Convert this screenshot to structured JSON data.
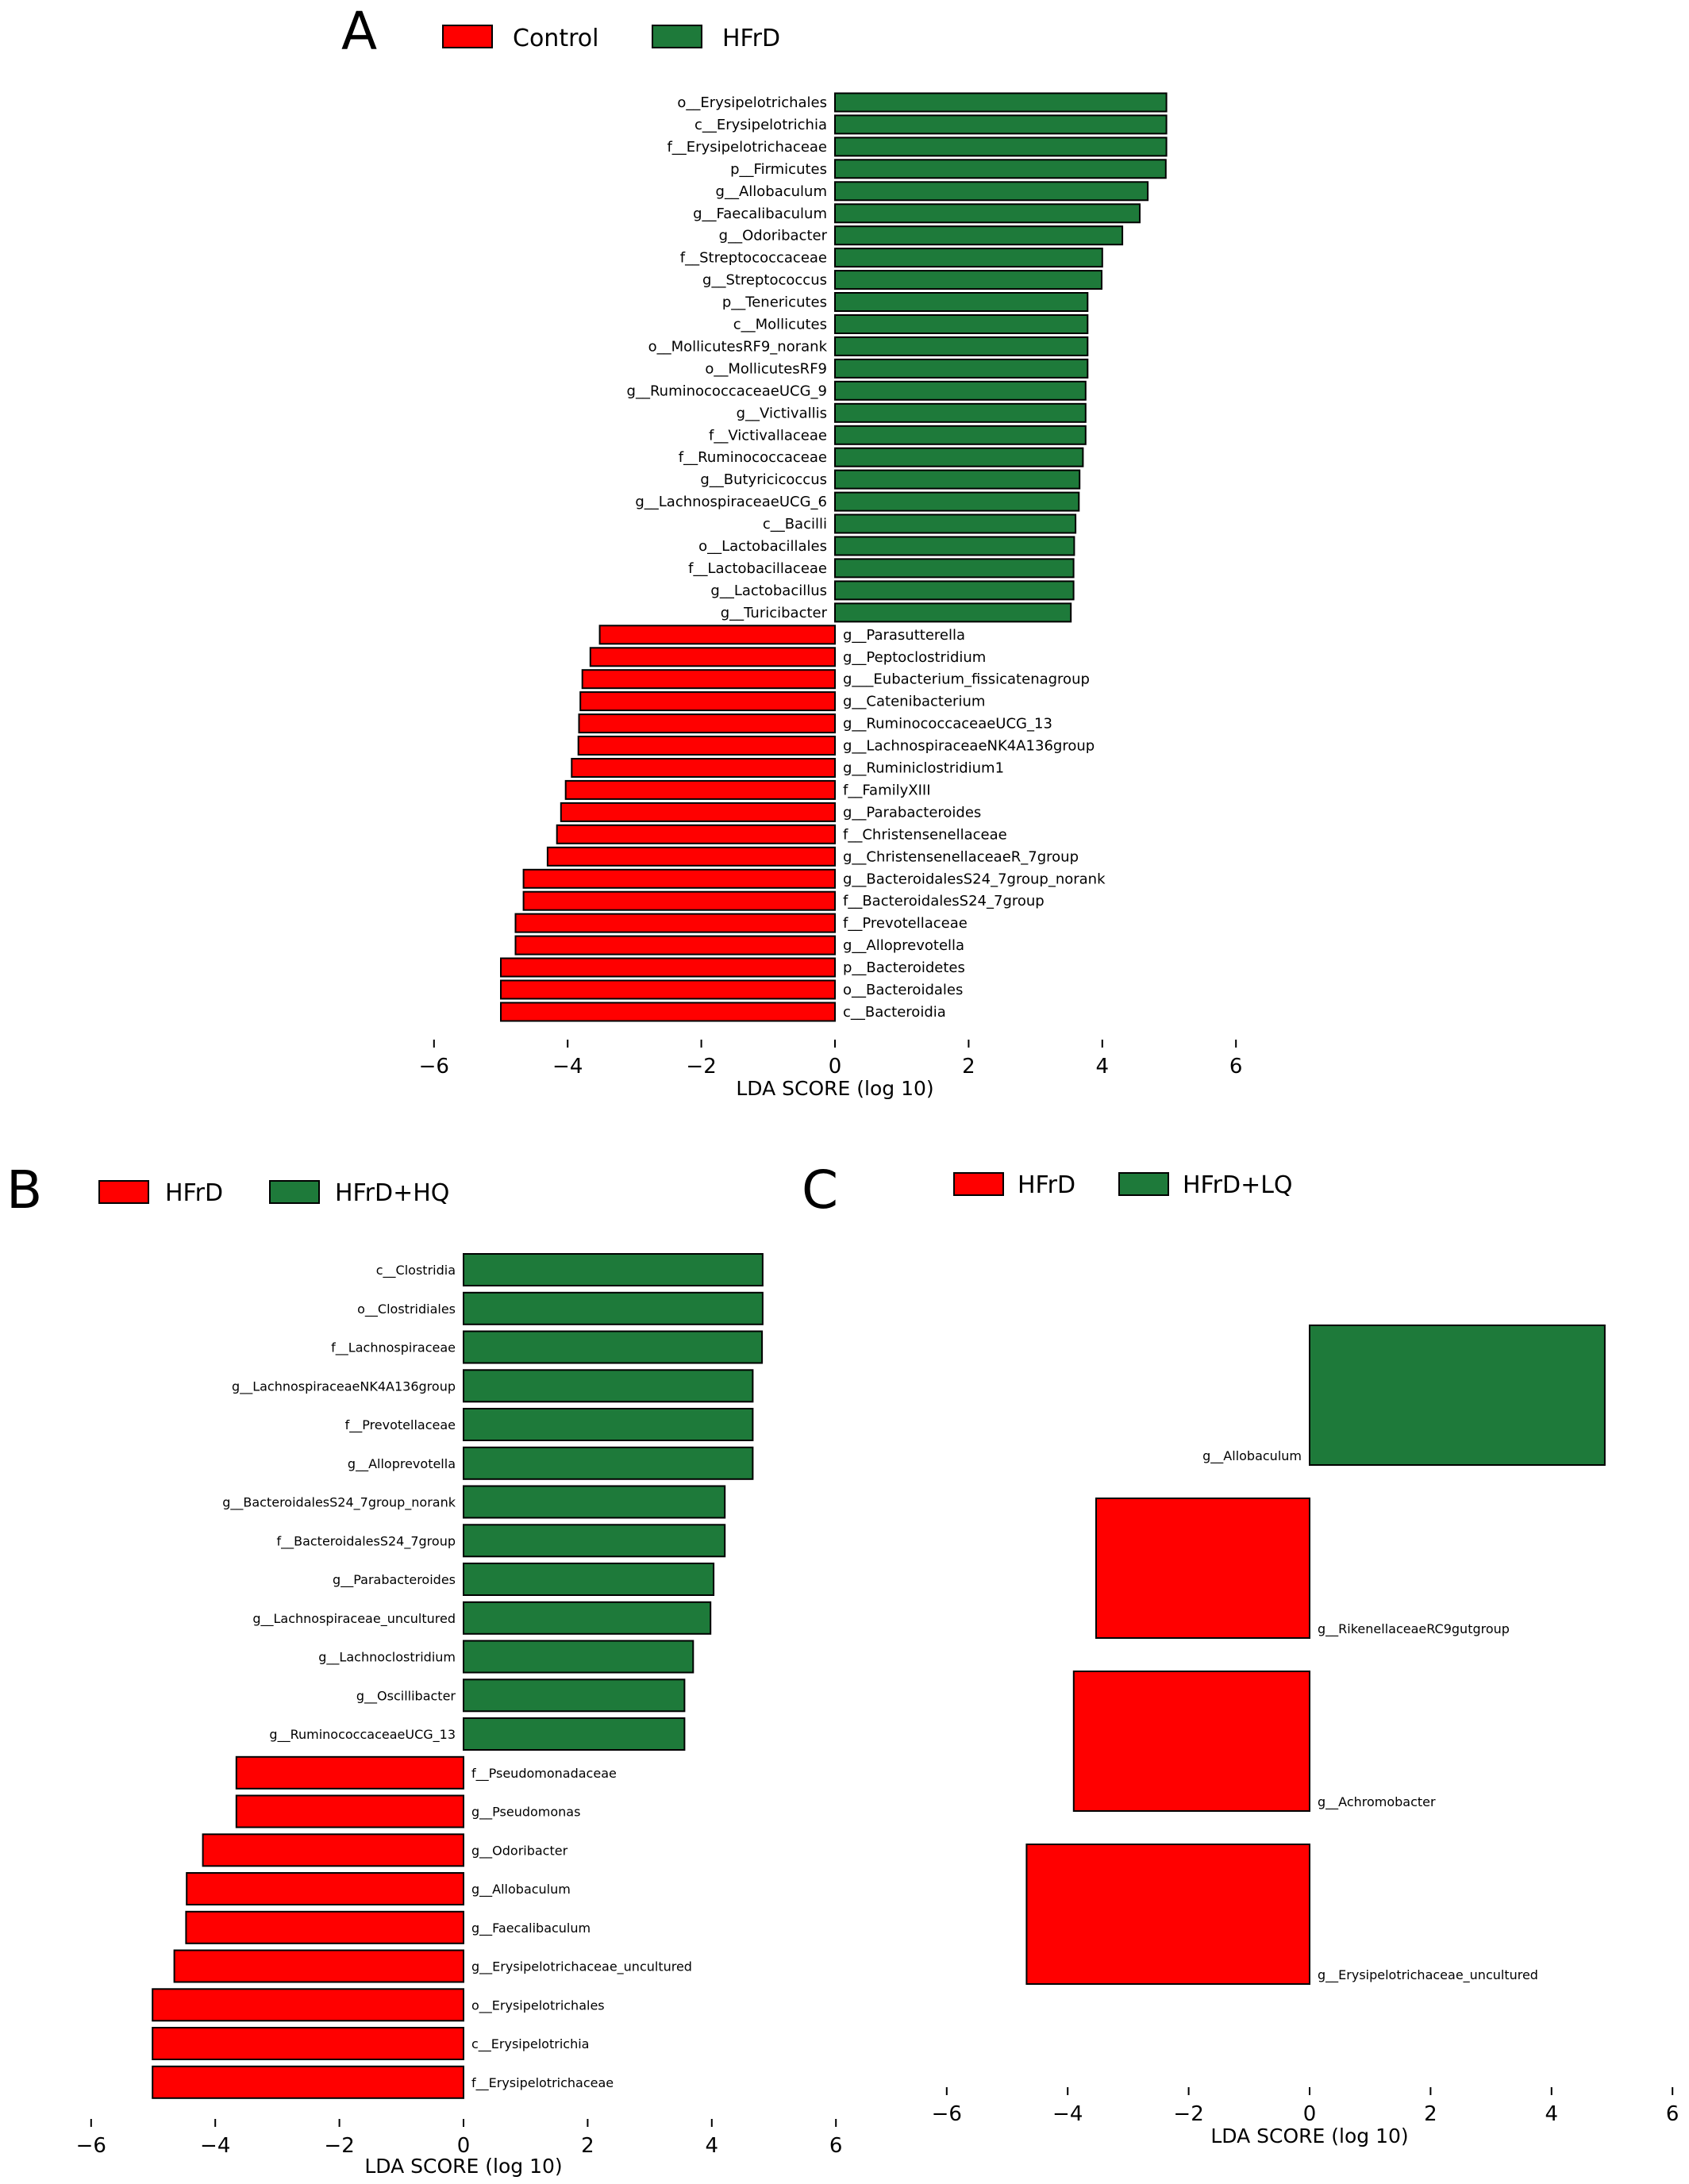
{
  "colors": {
    "negative": "#ff0000",
    "positive": "#1e7a3a",
    "edge": "#000000"
  },
  "chart_data": [
    {
      "panel": "A",
      "type": "bar",
      "orientation": "horizontal",
      "legend": [
        {
          "name": "Control",
          "color": "#ff0000"
        },
        {
          "name": "HFrD",
          "color": "#1e7a3a"
        }
      ],
      "legend_position": "top",
      "xlabel": "LDA SCORE (log 10)",
      "xlim": [
        -6,
        6
      ],
      "xticks": [
        -6,
        -4,
        -2,
        0,
        2,
        4,
        6
      ],
      "xtick_labels": [
        "−6",
        "−4",
        "−2",
        "0",
        "2",
        "4",
        "6"
      ],
      "grid": false,
      "categories": [
        "o__Erysipelotrichales",
        "c__Erysipelotrichia",
        "f__Erysipelotrichaceae",
        "p__Firmicutes",
        "g__Allobaculum",
        "g__Faecalibaculum",
        "g__Odoribacter",
        "f__Streptococcaceae",
        "g__Streptococcus",
        "p__Tenericutes",
        "c__Mollicutes",
        "o__MollicutesRF9_norank",
        "o__MollicutesRF9",
        "g__RuminococcaceaeUCG_9",
        "g__Victivallis",
        "f__Victivallaceae",
        "f__Ruminococcaceae",
        "g__Butyricicoccus",
        "g__LachnospiraceaeUCG_6",
        "c__Bacilli",
        "o__Lactobacillales",
        "f__Lactobacillaceae",
        "g__Lactobacillus",
        "g__Turicibacter",
        "g__Parasutterella",
        "g__Peptoclostridium",
        "g___Eubacterium_fissicatenagroup",
        "g__Catenibacterium",
        "g__RuminococcaceaeUCG_13",
        "g__LachnospiraceaeNK4A136group",
        "g__Ruminiclostridium1",
        "f__FamilyXIII",
        "g__Parabacteroides",
        "f__Christensenellaceae",
        "g__ChristensenellaceaeR_7group",
        "g__BacteroidalesS24_7group_norank",
        "f__BacteroidalesS24_7group",
        "f__Prevotellaceae",
        "g__Alloprevotella",
        "p__Bacteroidetes",
        "o__Bacteroidales",
        "c__Bacteroidia"
      ],
      "values": [
        4.96,
        4.96,
        4.96,
        4.95,
        4.68,
        4.56,
        4.3,
        4.0,
        3.99,
        3.78,
        3.78,
        3.78,
        3.78,
        3.75,
        3.75,
        3.75,
        3.71,
        3.66,
        3.65,
        3.6,
        3.58,
        3.57,
        3.57,
        3.53,
        -3.52,
        -3.66,
        -3.78,
        -3.81,
        -3.83,
        -3.84,
        -3.94,
        -4.03,
        -4.1,
        -4.16,
        -4.3,
        -4.66,
        -4.66,
        -4.78,
        -4.78,
        -5.0,
        -5.0,
        -5.0
      ]
    },
    {
      "panel": "B",
      "type": "bar",
      "orientation": "horizontal",
      "legend": [
        {
          "name": "HFrD",
          "color": "#ff0000"
        },
        {
          "name": "HFrD+HQ",
          "color": "#1e7a3a"
        }
      ],
      "legend_position": "top-left",
      "xlabel": "LDA SCORE (log 10)",
      "xlim": [
        -6,
        6
      ],
      "xticks": [
        -6,
        -4,
        -2,
        0,
        2,
        4,
        6
      ],
      "xtick_labels": [
        "−6",
        "−4",
        "−2",
        "0",
        "2",
        "4",
        "6"
      ],
      "grid": false,
      "categories": [
        "c__Clostridia",
        "o__Clostridiales",
        "f__Lachnospiraceae",
        "g__LachnospiraceaeNK4A136group",
        "f__Prevotellaceae",
        "g__Alloprevotella",
        "g__BacteroidalesS24_7group_norank",
        "f__BacteroidalesS24_7group",
        "g__Parabacteroides",
        "g__Lachnospiraceae_uncultured",
        "g__Lachnoclostridium",
        "g__Oscillibacter",
        "g__RuminococcaceaeUCG_13",
        "f__Pseudomonadaceae",
        "g__Pseudomonas",
        "g__Odoribacter",
        "g__Allobaculum",
        "g__Faecalibaculum",
        "g__Erysipelotrichaceae_uncultured",
        "o__Erysipelotrichales",
        "c__Erysipelotrichia",
        "f__Erysipelotrichaceae"
      ],
      "values": [
        4.82,
        4.82,
        4.81,
        4.66,
        4.66,
        4.66,
        4.21,
        4.21,
        4.03,
        3.98,
        3.7,
        3.56,
        3.56,
        -3.66,
        -3.66,
        -4.2,
        -4.46,
        -4.47,
        -4.66,
        -5.01,
        -5.01,
        -5.01
      ]
    },
    {
      "panel": "C",
      "type": "bar",
      "orientation": "horizontal",
      "legend": [
        {
          "name": "HFrD",
          "color": "#ff0000"
        },
        {
          "name": "HFrD+LQ",
          "color": "#1e7a3a"
        }
      ],
      "legend_position": "top",
      "xlabel": "LDA SCORE (log 10)",
      "xlim": [
        -6,
        6
      ],
      "xticks": [
        -6,
        -4,
        -2,
        0,
        2,
        4,
        6
      ],
      "xtick_labels": [
        "−6",
        "−4",
        "−2",
        "0",
        "2",
        "4",
        "6"
      ],
      "grid": false,
      "categories": [
        "g__Allobaculum",
        "g__RikenellaceaeRC9gutgroup",
        "g__Achromobacter",
        "g__Erysipelotrichaceae_uncultured"
      ],
      "values": [
        4.88,
        -3.53,
        -3.9,
        -4.68
      ]
    }
  ]
}
